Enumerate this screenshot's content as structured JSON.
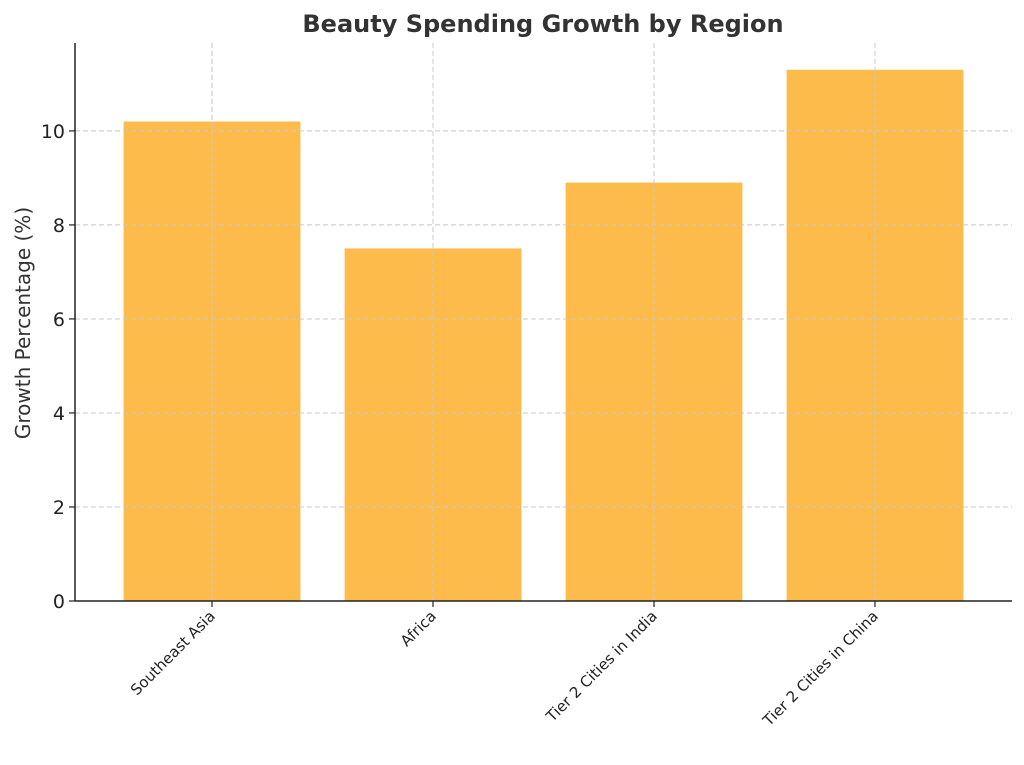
{
  "chart_data": {
    "type": "bar",
    "title": "Beauty Spending Growth by Region",
    "xlabel": "",
    "ylabel": "Growth Percentage (%)",
    "categories": [
      "Southeast Asia",
      "Africa",
      "Tier 2 Cities in India",
      "Tier 2 Cities in China"
    ],
    "values": [
      10.2,
      7.5,
      8.9,
      11.3
    ],
    "ylim": [
      0,
      11.87
    ],
    "yticks": [
      0,
      2,
      4,
      6,
      8,
      10
    ],
    "grid": true,
    "bar_color": "#fdbb4c",
    "tick_rotation": "45"
  }
}
